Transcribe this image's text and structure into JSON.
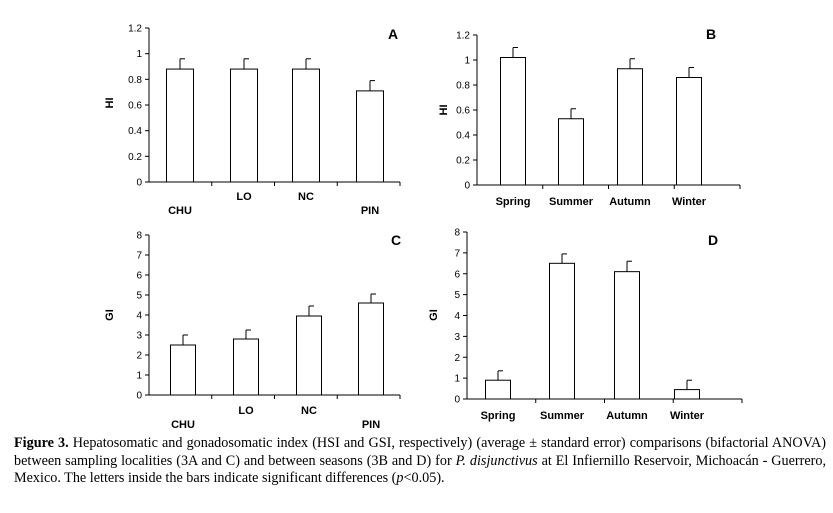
{
  "chart_data": [
    {
      "type": "bar",
      "panel": "A",
      "ylabel": "HI",
      "categories": [
        "CHU",
        "LO",
        "NC",
        "PIN"
      ],
      "values": [
        0.88,
        0.88,
        0.88,
        0.71
      ],
      "errors": [
        0.08,
        0.08,
        0.08,
        0.08
      ],
      "ylim": [
        0,
        1.2
      ],
      "yticks": [
        "0",
        "0.2",
        "0.4",
        "0.6",
        "0.8",
        "1",
        "1.2"
      ]
    },
    {
      "type": "bar",
      "panel": "B",
      "ylabel": "HI",
      "categories": [
        "Spring",
        "Summer",
        "Autumn",
        "Winter"
      ],
      "values": [
        1.02,
        0.53,
        0.93,
        0.86
      ],
      "errors": [
        0.08,
        0.08,
        0.08,
        0.08
      ],
      "ylim": [
        0,
        1.2
      ],
      "yticks": [
        "0",
        "0.2",
        "0.4",
        "0.6",
        "0.8",
        "1",
        "1.2"
      ]
    },
    {
      "type": "bar",
      "panel": "C",
      "ylabel": "GI",
      "categories": [
        "CHU",
        "LO",
        "NC",
        "PIN"
      ],
      "values": [
        2.5,
        2.8,
        3.95,
        4.6
      ],
      "errors": [
        0.5,
        0.45,
        0.5,
        0.45
      ],
      "ylim": [
        0,
        8
      ],
      "yticks": [
        "0",
        "1",
        "2",
        "3",
        "4",
        "5",
        "6",
        "7",
        "8"
      ]
    },
    {
      "type": "bar",
      "panel": "D",
      "ylabel": "GI",
      "categories": [
        "Spring",
        "Summer",
        "Autumn",
        "Winter"
      ],
      "values": [
        0.9,
        6.5,
        6.1,
        0.45
      ],
      "errors": [
        0.45,
        0.45,
        0.5,
        0.45
      ],
      "ylim": [
        0,
        8
      ],
      "yticks": [
        "0",
        "1",
        "2",
        "3",
        "4",
        "5",
        "6",
        "7",
        "8"
      ]
    }
  ],
  "caption": {
    "lead": "Figure 3.",
    "part1": "Hepatosomatic and gonadosomatic index (HSI and GSI, respectively) (average ± standard error) comparisons (bifactorial ANOVA) between sampling localities (3A and C) and between seasons (3B and D) for",
    "species": "P. disjunctivus",
    "part2": "at El Infiernillo Reservoir, Michoacán - Guerrero, Mexico. The letters inside the bars indicate significant differences (",
    "pvar": "p",
    "part3": "<0.05)."
  }
}
